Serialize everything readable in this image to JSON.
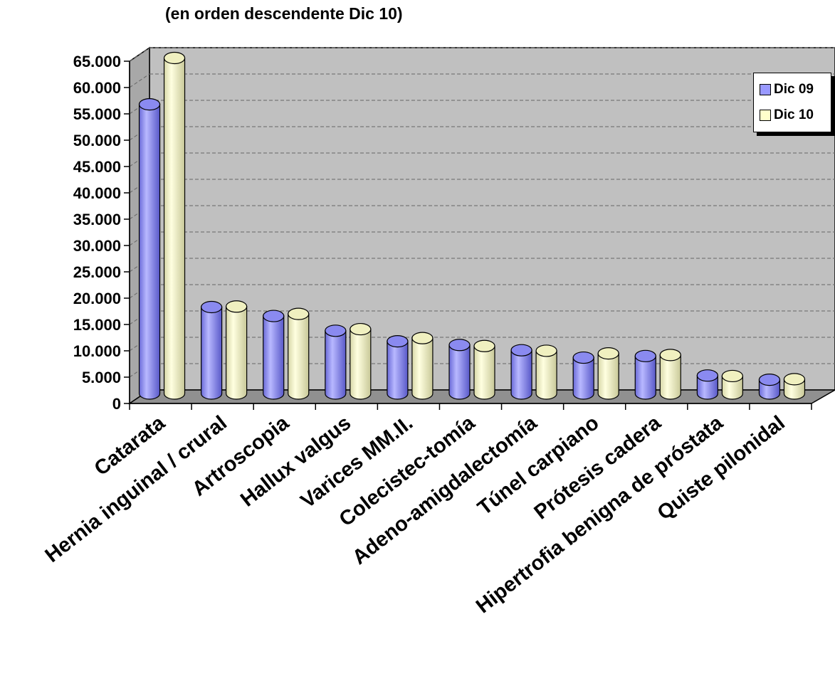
{
  "chart_data": {
    "type": "bar",
    "title": "",
    "subtitle": "(en orden descendente Dic 10)",
    "xlabel": "",
    "ylabel": "",
    "ylim": [
      0,
      65000
    ],
    "y_ticks": [
      "0",
      "5.000",
      "10.000",
      "15.000",
      "20.000",
      "25.000",
      "30.000",
      "35.000",
      "40.000",
      "45.000",
      "50.000",
      "55.000",
      "60.000",
      "65.000"
    ],
    "y_tick_values": [
      0,
      5000,
      10000,
      15000,
      20000,
      25000,
      30000,
      35000,
      40000,
      45000,
      50000,
      55000,
      60000,
      65000
    ],
    "grid": true,
    "style": "3d-cylinder",
    "legend_position": "right",
    "categories": [
      "Catarata",
      "Hernia inguinal / crural",
      "Artroscopia",
      "Hallux valgus",
      "Varices MM.II.",
      "Colecistec-tomía",
      "Adeno-amigdalectomía",
      "Túnel carpiano",
      "Prótesis cadera",
      "Hipertrofia benigna de próstata",
      "Quiste pilonidal"
    ],
    "series": [
      {
        "name": "Dic 09",
        "color": "#9999ff",
        "values": [
          56000,
          17500,
          15800,
          13000,
          11000,
          10300,
          9300,
          7900,
          8200,
          4500,
          3700
        ]
      },
      {
        "name": "Dic 10",
        "color": "#ffffcc",
        "values": [
          64800,
          17600,
          16200,
          13300,
          11600,
          10100,
          9200,
          8700,
          8400,
          4400,
          3800
        ]
      }
    ]
  }
}
